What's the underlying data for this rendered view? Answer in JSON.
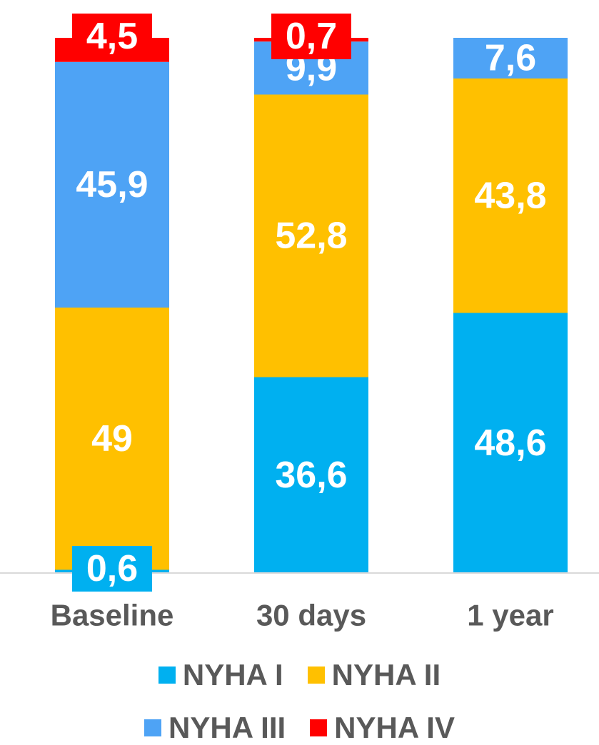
{
  "chart_data": {
    "type": "bar",
    "stacked": true,
    "categories": [
      "Baseline",
      "30 days",
      "1 year"
    ],
    "series": [
      {
        "name": "NYHA I",
        "color": "#00B0F0",
        "values": [
          0.6,
          36.6,
          48.6
        ],
        "labels": [
          "0,6",
          "36,6",
          "48,6"
        ]
      },
      {
        "name": "NYHA II",
        "color": "#FFC000",
        "values": [
          49,
          52.8,
          43.8
        ],
        "labels": [
          "49",
          "52,8",
          "43,8"
        ]
      },
      {
        "name": "NYHA III",
        "color": "#4EA3F5",
        "values": [
          45.9,
          9.9,
          7.6
        ],
        "labels": [
          "45,9",
          "9,9",
          "7,6"
        ]
      },
      {
        "name": "NYHA IV",
        "color": "#FF0000",
        "values": [
          4.5,
          0.7,
          0
        ],
        "labels": [
          "4,5",
          "0,7",
          ""
        ]
      }
    ],
    "ylim": [
      0,
      100
    ],
    "grid": false,
    "legend": "bottom"
  }
}
